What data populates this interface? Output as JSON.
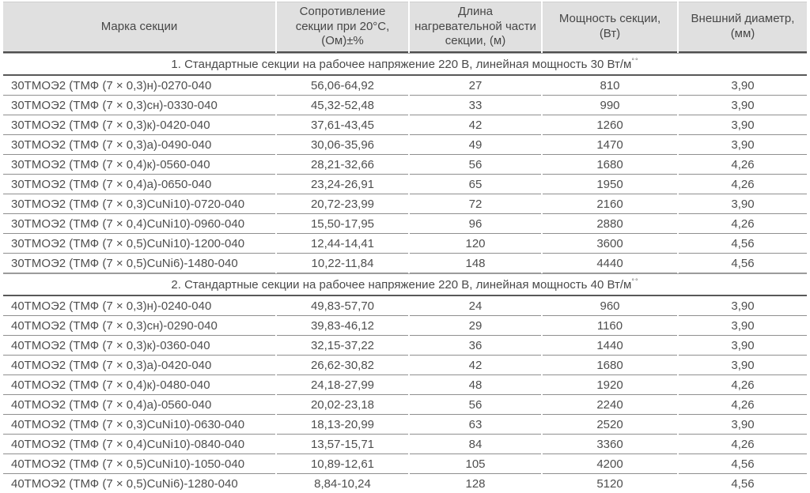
{
  "colors": {
    "header_bg": "#e0e0e0",
    "text": "#4e4e4e",
    "row_line": "#8f8f8f",
    "dark_line": "#4e4e4e",
    "bottom_line": "#ababab"
  },
  "table": {
    "columns": [
      {
        "label": "Марка секции"
      },
      {
        "label": "Сопротивление секции при 20°C, (Ом)±%"
      },
      {
        "label": "Длина нагревательной части секции, (м)"
      },
      {
        "label": "Мощность секции, (Вт)"
      },
      {
        "label": "Внешний диаметр, (мм)"
      }
    ],
    "sections": [
      {
        "title": "1. Стандартные секции на рабочее напряжение 220 В, линейная мощность 30 Вт/м",
        "footnote_marks": "°°",
        "rows": [
          [
            "30ТМОЭ2 (ТМФ (7 × 0,3)н)-0270-040",
            "56,06-64,92",
            "27",
            "810",
            "3,90"
          ],
          [
            "30ТМОЭ2 (ТМФ (7 × 0,3)сн)-0330-040",
            "45,32-52,48",
            "33",
            "990",
            "3,90"
          ],
          [
            "30ТМОЭ2 (ТМФ (7 × 0,3)к)-0420-040",
            "37,61-43,45",
            "42",
            "1260",
            "3,90"
          ],
          [
            "30ТМОЭ2 (ТМФ (7 × 0,3)а)-0490-040",
            "30,06-35,96",
            "49",
            "1470",
            "3,90"
          ],
          [
            "30ТМОЭ2 (ТМФ (7 × 0,4)к)-0560-040",
            "28,21-32,66",
            "56",
            "1680",
            "4,26"
          ],
          [
            "30ТМОЭ2 (ТМФ (7 × 0,4)а)-0650-040",
            "23,24-26,91",
            "65",
            "1950",
            "4,26"
          ],
          [
            "30ТМОЭ2 (ТМФ (7 × 0,3)CuNi10)-0720-040",
            "20,72-23,99",
            "72",
            "2160",
            "3,90"
          ],
          [
            "30ТМОЭ2 (ТМФ (7 × 0,4)CuNi10)-0960-040",
            "15,50-17,95",
            "96",
            "2880",
            "4,26"
          ],
          [
            "30ТМОЭ2 (ТМФ (7 × 0,5)CuNi10)-1200-040",
            "12,44-14,41",
            "120",
            "3600",
            "4,56"
          ],
          [
            "30ТМОЭ2 (ТМФ (7 × 0,5)CuNi6)-1480-040",
            "10,22-11,84",
            "148",
            "4440",
            "4,56"
          ]
        ]
      },
      {
        "title": "2. Стандартные секции на рабочее напряжение 220 В, линейная мощность 40 Вт/м",
        "footnote_marks": "°°",
        "rows": [
          [
            "40ТМОЭ2 (ТМФ (7 × 0,3)н)-0240-040",
            "49,83-57,70",
            "24",
            "960",
            "3,90"
          ],
          [
            "40ТМОЭ2 (ТМФ (7 × 0,3)сн)-0290-040",
            "39,83-46,12",
            "29",
            "1160",
            "3,90"
          ],
          [
            "40ТМОЭ2 (ТМФ (7 × 0,3)к)-0360-040",
            "32,15-37,22",
            "36",
            "1440",
            "3,90"
          ],
          [
            "40ТМОЭ2 (ТМФ (7 × 0,3)а)-0420-040",
            "26,62-30,82",
            "42",
            "1680",
            "3,90"
          ],
          [
            "40ТМОЭ2 (ТМФ (7 × 0,4)к)-0480-040",
            "24,18-27,99",
            "48",
            "1920",
            "4,26"
          ],
          [
            "40ТМОЭ2 (ТМФ (7 × 0,4)а)-0560-040",
            "20,02-23,18",
            "56",
            "2240",
            "4,26"
          ],
          [
            "40ТМОЭ2 (ТМФ (7 × 0,3)CuNi10)-0630-040",
            "18,13-20,99",
            "63",
            "2520",
            "3,90"
          ],
          [
            "40ТМОЭ2 (ТМФ (7 × 0,4)CuNi10)-0840-040",
            "13,57-15,71",
            "84",
            "3360",
            "4,26"
          ],
          [
            "40ТМОЭ2 (ТМФ (7 × 0,5)CuNi10)-1050-040",
            "10,89-12,61",
            "105",
            "4200",
            "4,56"
          ],
          [
            "40ТМОЭ2 (ТМФ (7 × 0,5)CuNi6)-1280-040",
            "8,84-10,24",
            "128",
            "5120",
            "4,56"
          ]
        ]
      }
    ]
  }
}
